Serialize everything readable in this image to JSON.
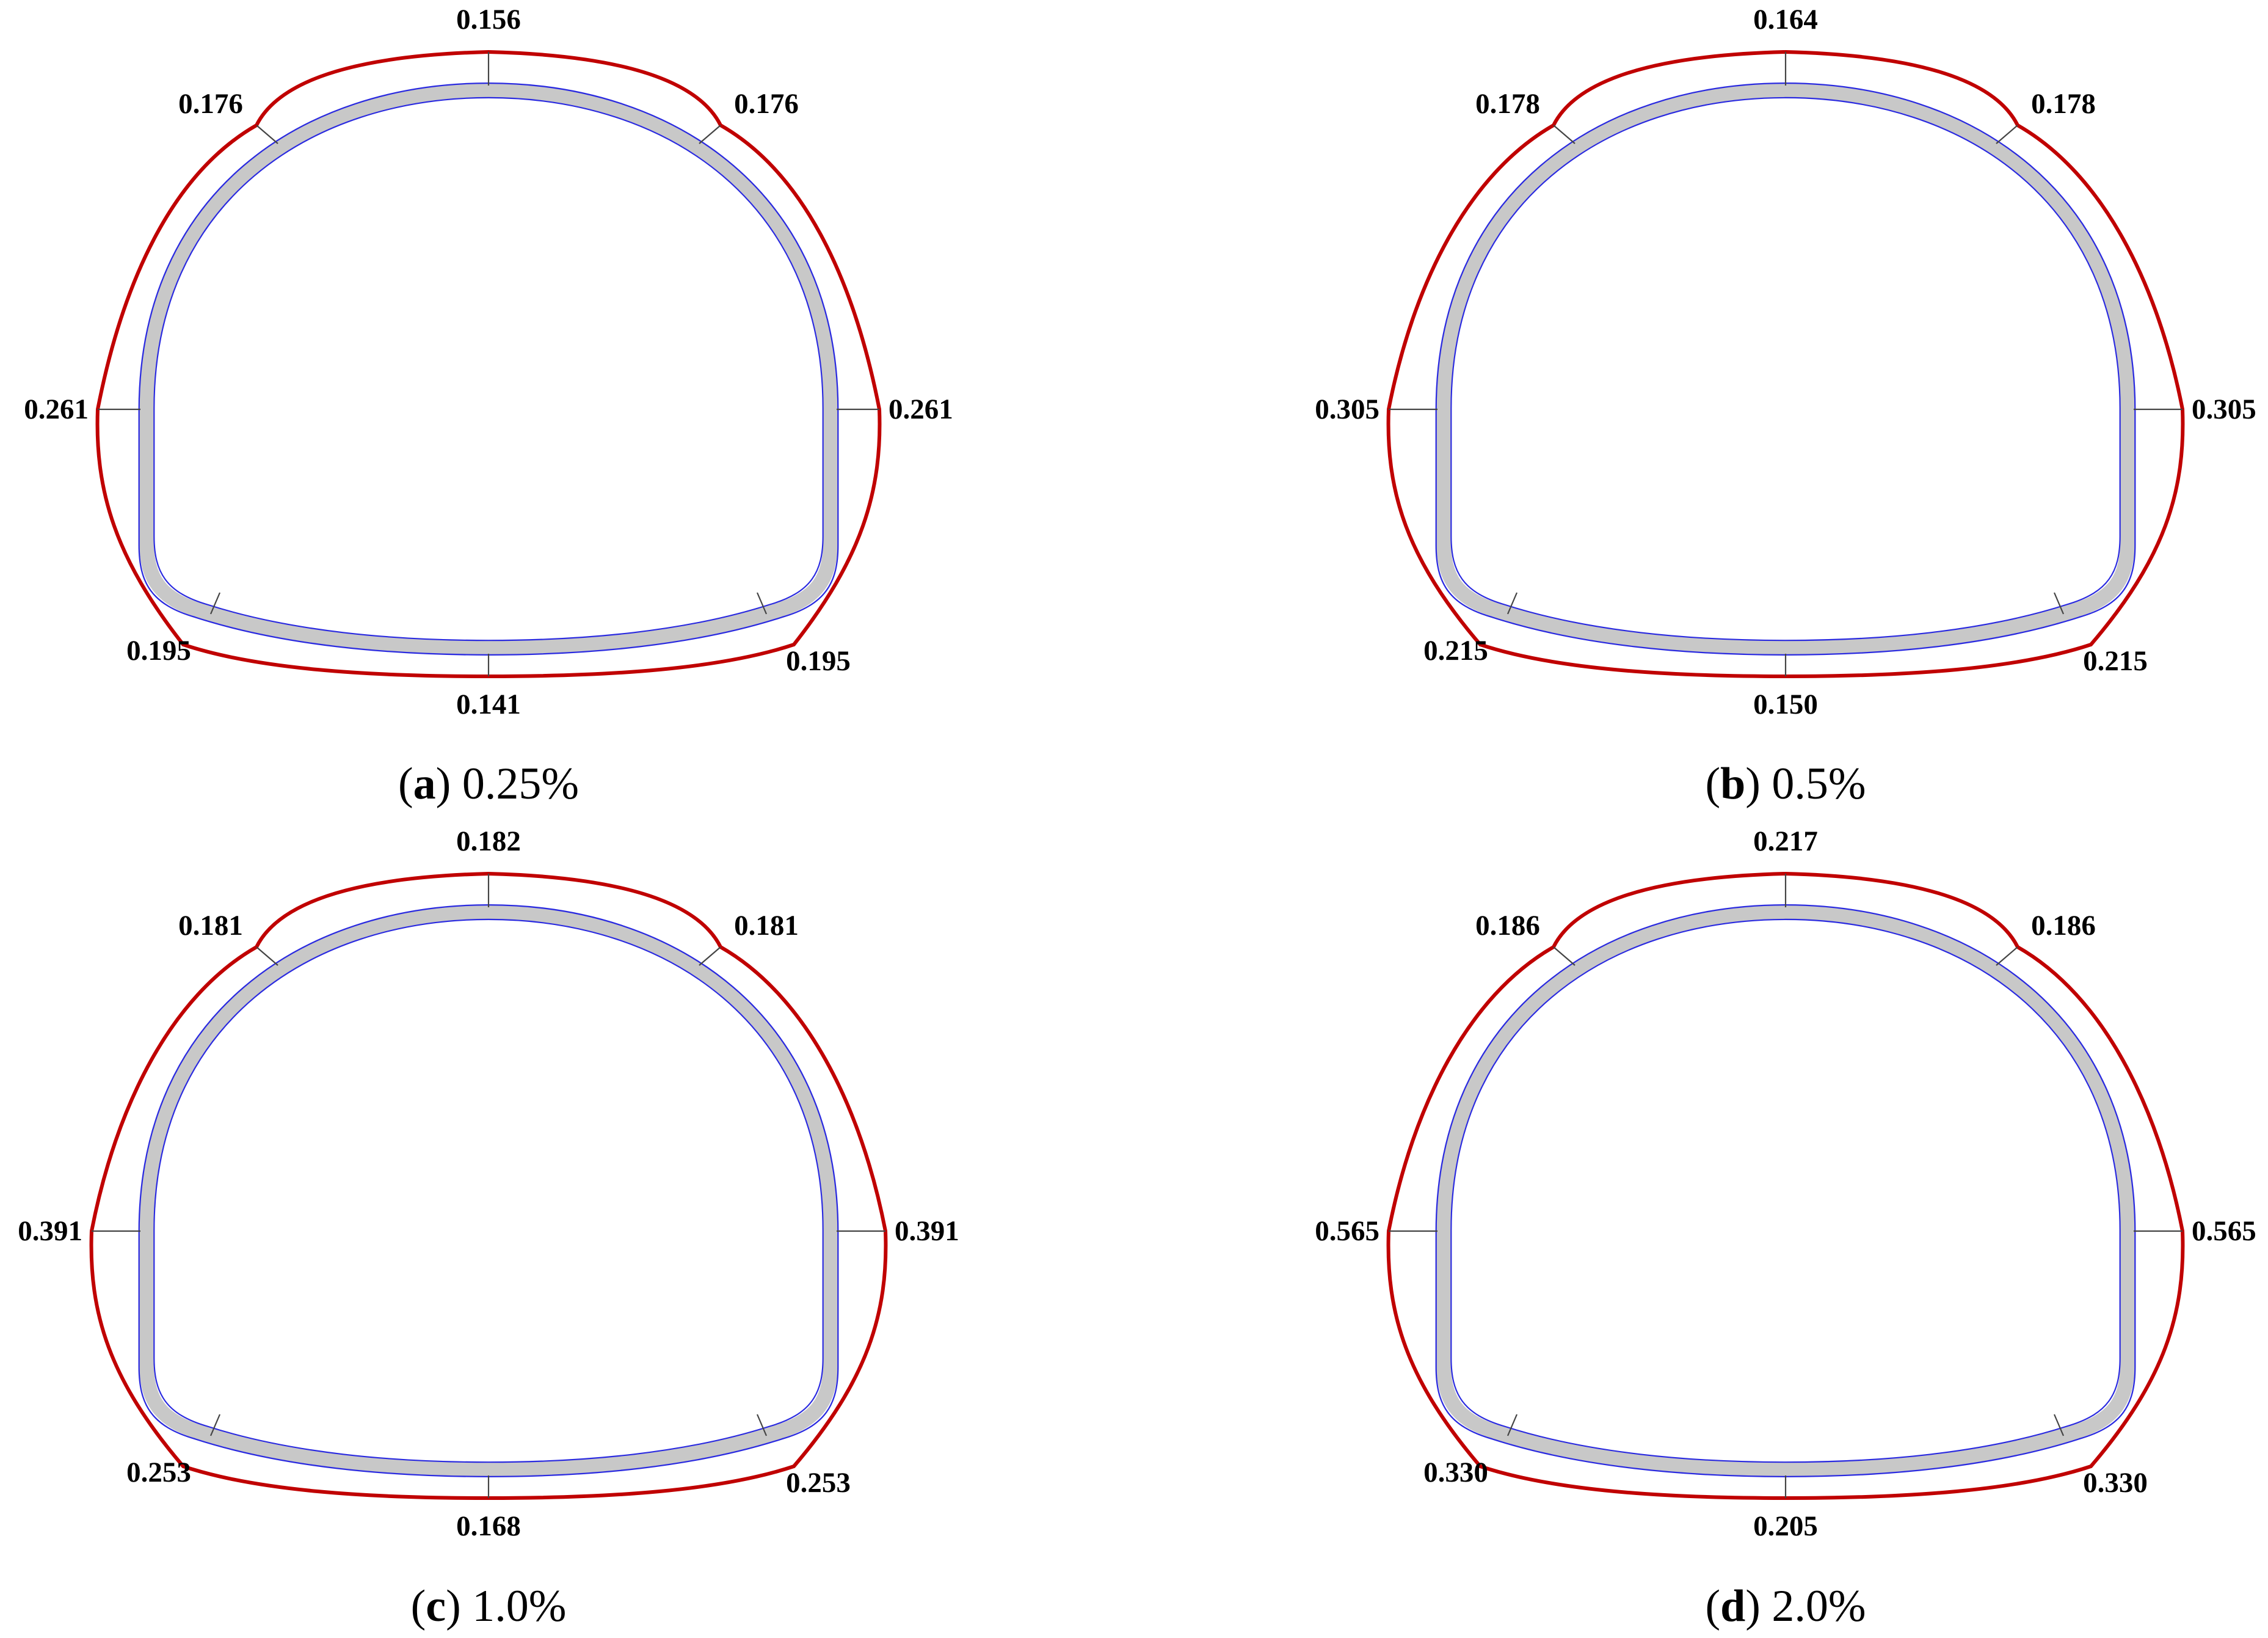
{
  "figure": {
    "panels": [
      {
        "letter": "a",
        "label": "0.25%",
        "values": {
          "crown": "0.156",
          "upper_left": "0.176",
          "upper_right": "0.176",
          "left_wall": "0.261",
          "right_wall": "0.261",
          "lower_left": "0.195",
          "lower_right": "0.195",
          "invert": "0.141"
        }
      },
      {
        "letter": "b",
        "label": "0.5%",
        "values": {
          "crown": "0.164",
          "upper_left": "0.178",
          "upper_right": "0.178",
          "left_wall": "0.305",
          "right_wall": "0.305",
          "lower_left": "0.215",
          "lower_right": "0.215",
          "invert": "0.150"
        }
      },
      {
        "letter": "c",
        "label": "1.0%",
        "values": {
          "crown": "0.182",
          "upper_left": "0.181",
          "upper_right": "0.181",
          "left_wall": "0.391",
          "right_wall": "0.391",
          "lower_left": "0.253",
          "lower_right": "0.253",
          "invert": "0.168"
        }
      },
      {
        "letter": "d",
        "label": "2.0%",
        "values": {
          "crown": "0.217",
          "upper_left": "0.186",
          "upper_right": "0.186",
          "left_wall": "0.565",
          "right_wall": "0.565",
          "lower_left": "0.330",
          "lower_right": "0.330",
          "invert": "0.205"
        }
      }
    ],
    "colors": {
      "outer_curve": "#c00000",
      "lining_fill": "#c8c8c8",
      "lining_edge": "#2a2ae0",
      "ticks": "#444444"
    }
  }
}
